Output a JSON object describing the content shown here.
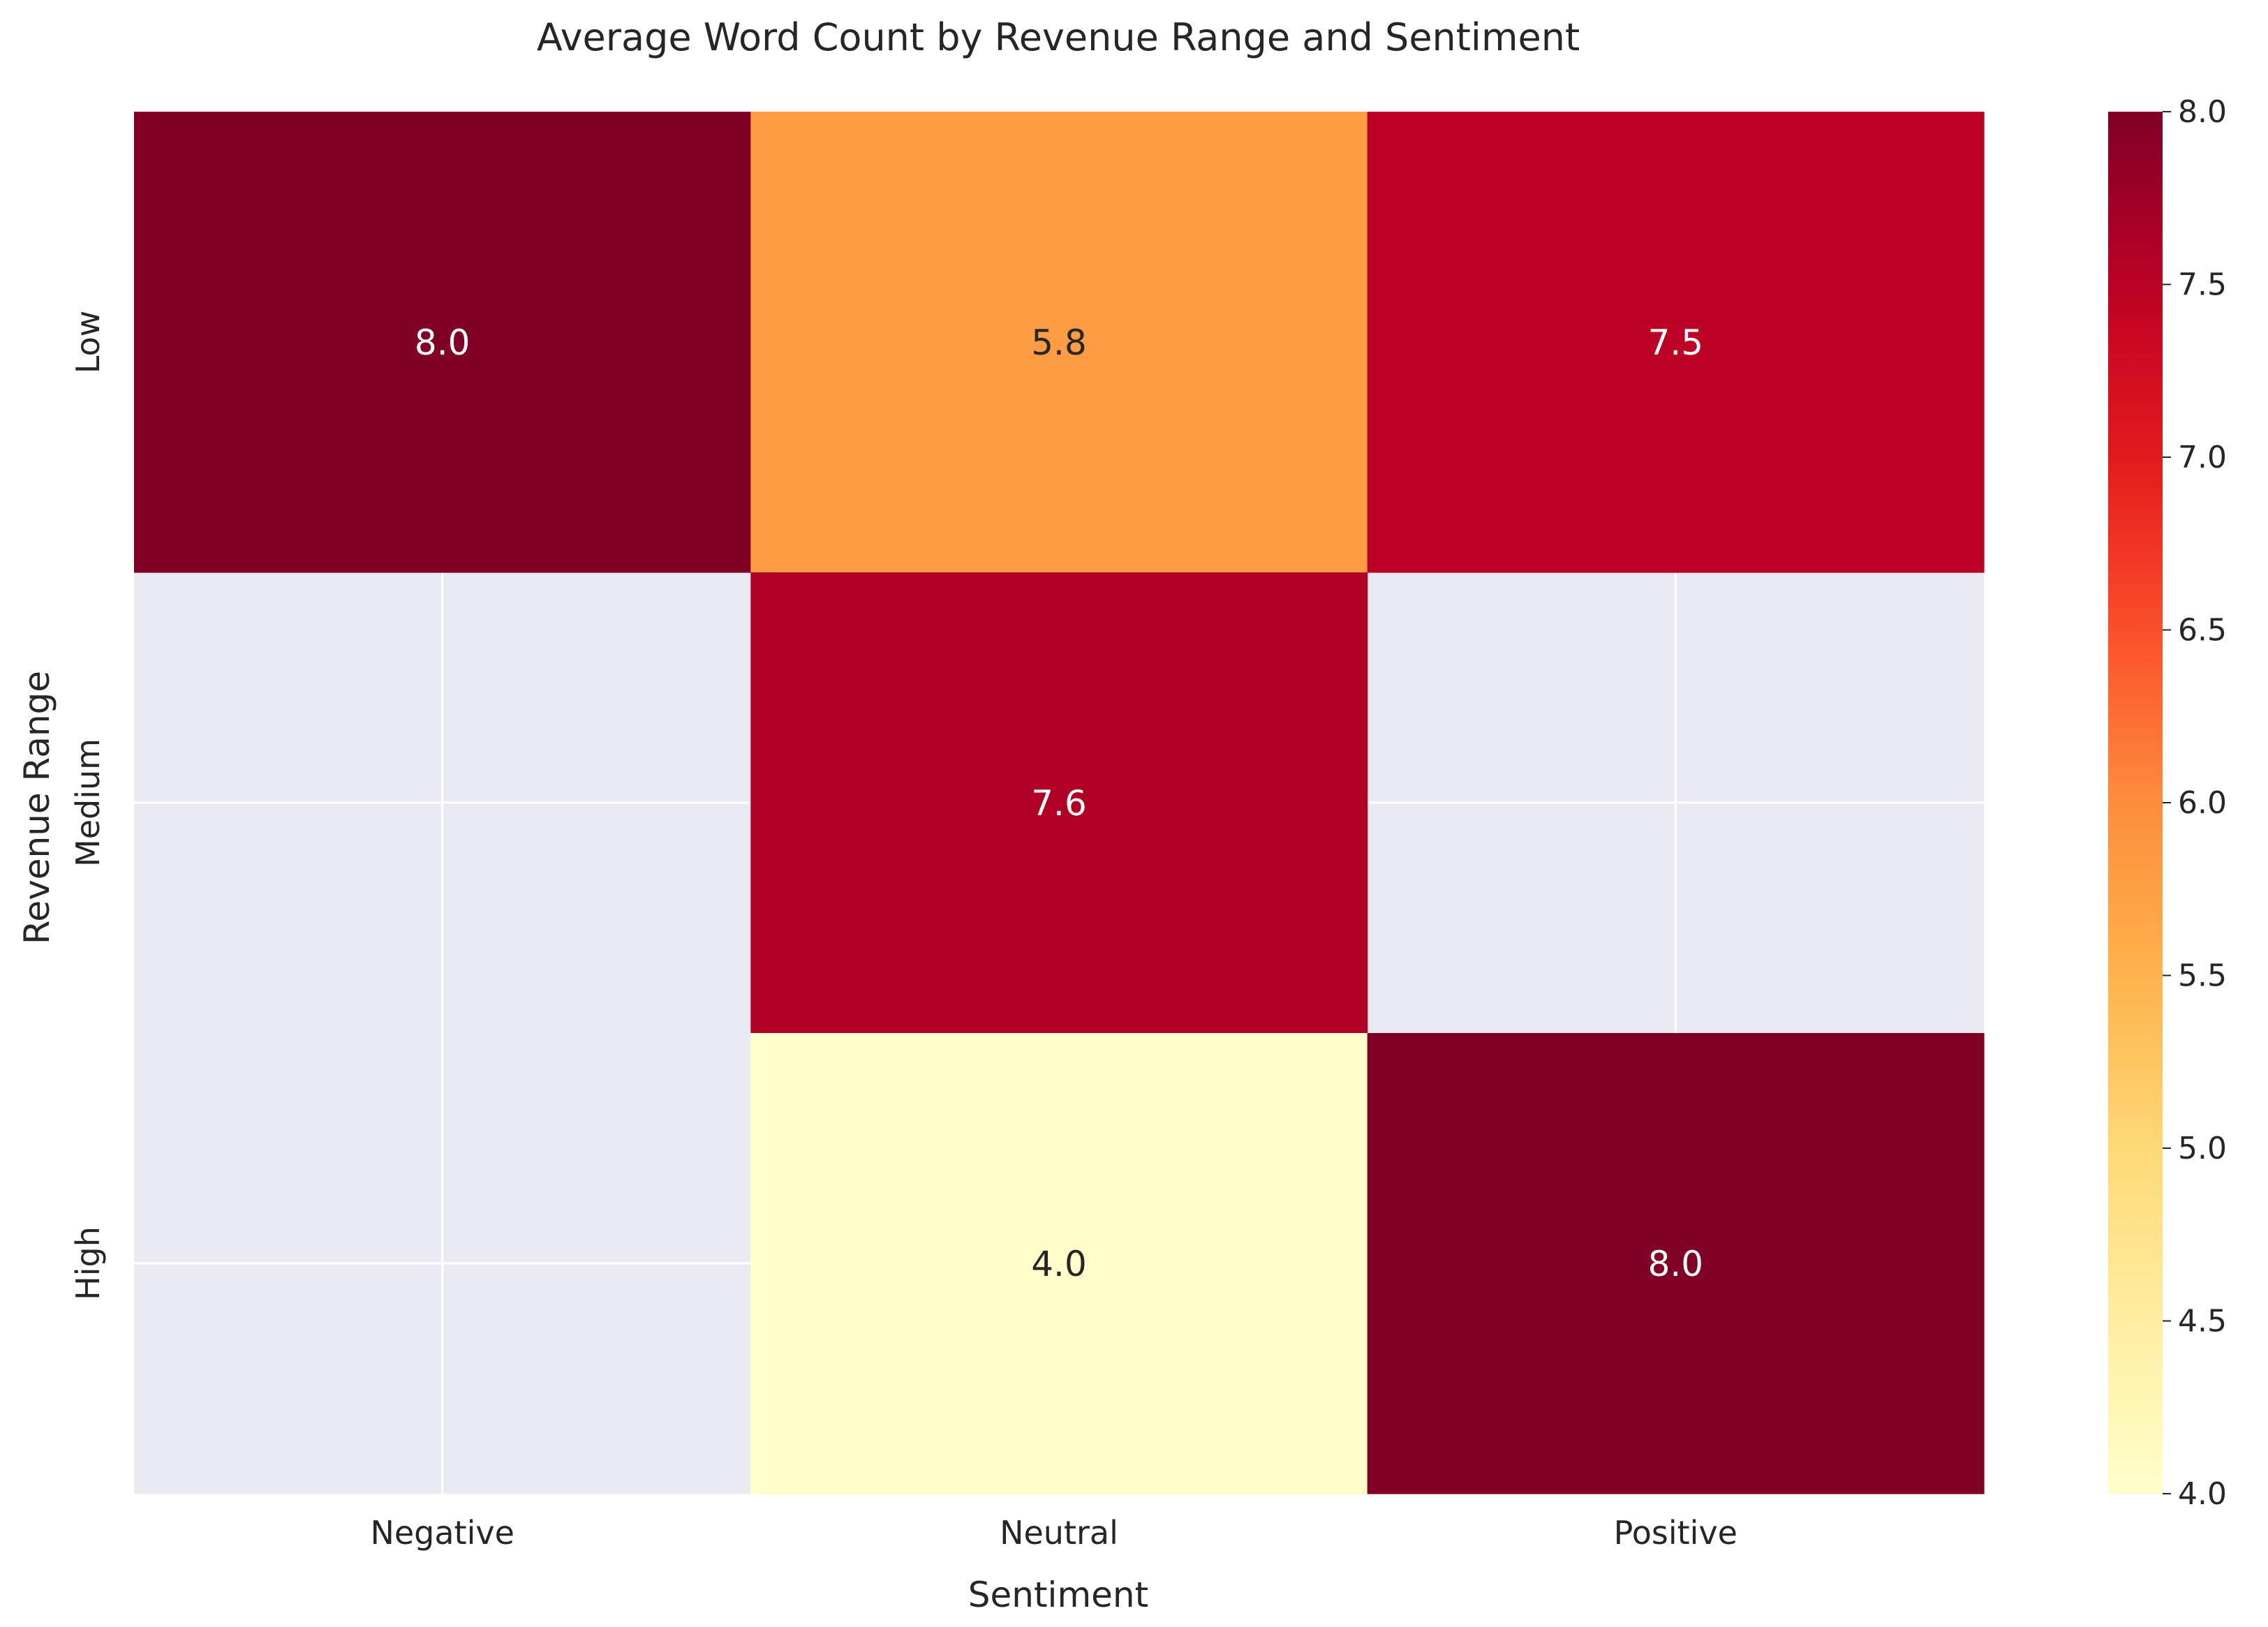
{
  "chart_data": {
    "type": "heatmap",
    "title": "Average Word Count by Revenue Range and Sentiment",
    "xlabel": "Sentiment",
    "ylabel": "Revenue Range",
    "x_categories": [
      "Negative",
      "Neutral",
      "Positive"
    ],
    "y_categories": [
      "Low",
      "Medium",
      "High"
    ],
    "values": [
      [
        8.0,
        5.8,
        7.5
      ],
      [
        null,
        7.6,
        null
      ],
      [
        null,
        4.0,
        8.0
      ]
    ],
    "value_labels": [
      [
        "8.0",
        "5.8",
        "7.5"
      ],
      [
        "",
        "7.6",
        ""
      ],
      [
        "",
        "4.0",
        "8.0"
      ]
    ],
    "colorbar": {
      "min": 4.0,
      "max": 8.0,
      "ticks": [
        4.0,
        4.5,
        5.0,
        5.5,
        6.0,
        6.5,
        7.0,
        7.5,
        8.0
      ],
      "tick_labels": [
        "4.0",
        "4.5",
        "5.0",
        "5.5",
        "6.0",
        "6.5",
        "7.0",
        "7.5",
        "8.0"
      ],
      "colormap": "YlOrRd"
    },
    "grid": true,
    "colors": {
      "missing_background": "#eaeaf2",
      "grid_line": "#ffffff",
      "text_dark": "#262626",
      "text_light": "#ffffff"
    }
  }
}
